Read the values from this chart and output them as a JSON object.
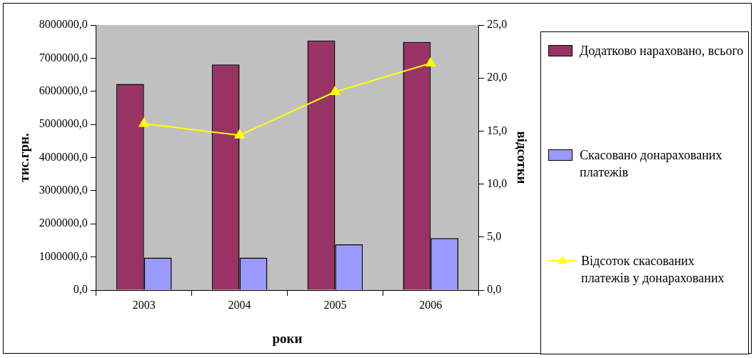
{
  "chart_data": {
    "type": "bar",
    "xlabel": "роки",
    "ylabel": "тис.грн.",
    "y2label": "відсотки",
    "categories": [
      "2003",
      "2004",
      "2005",
      "2006"
    ],
    "series": [
      {
        "name": "Додатково нараховано, всього",
        "color": "#993366",
        "values": [
          6220000,
          6810000,
          7530000,
          7490000
        ]
      },
      {
        "name": "Скасовано донарахованих платежів",
        "color": "#9999ff",
        "values": [
          980000,
          980000,
          1380000,
          1570000
        ]
      },
      {
        "name": "Відсоток скасованих платежів у донарахованих",
        "type": "line",
        "axis": "y2",
        "color": "#ffff00",
        "marker": "triangle",
        "values": [
          15.7,
          14.6,
          18.7,
          21.4
        ]
      }
    ],
    "ylim": [
      0,
      8000000
    ],
    "yticks": [
      {
        "value": 0,
        "label": "0,0"
      },
      {
        "value": 1000000,
        "label": "1000000,0"
      },
      {
        "value": 2000000,
        "label": "2000000,0"
      },
      {
        "value": 3000000,
        "label": "3000000,0"
      },
      {
        "value": 4000000,
        "label": "4000000,0"
      },
      {
        "value": 5000000,
        "label": "5000000,0"
      },
      {
        "value": 6000000,
        "label": "6000000,0"
      },
      {
        "value": 7000000,
        "label": "7000000,0"
      },
      {
        "value": 8000000,
        "label": "8000000,0"
      }
    ],
    "y2lim": [
      0,
      25
    ],
    "y2ticks": [
      {
        "value": 0,
        "label": "0,0"
      },
      {
        "value": 5,
        "label": "5,0"
      },
      {
        "value": 10,
        "label": "10,0"
      },
      {
        "value": 15,
        "label": "15,0"
      },
      {
        "value": 20,
        "label": "20,0"
      },
      {
        "value": 25,
        "label": "25,0"
      }
    ],
    "grid": false,
    "legend": "right"
  }
}
